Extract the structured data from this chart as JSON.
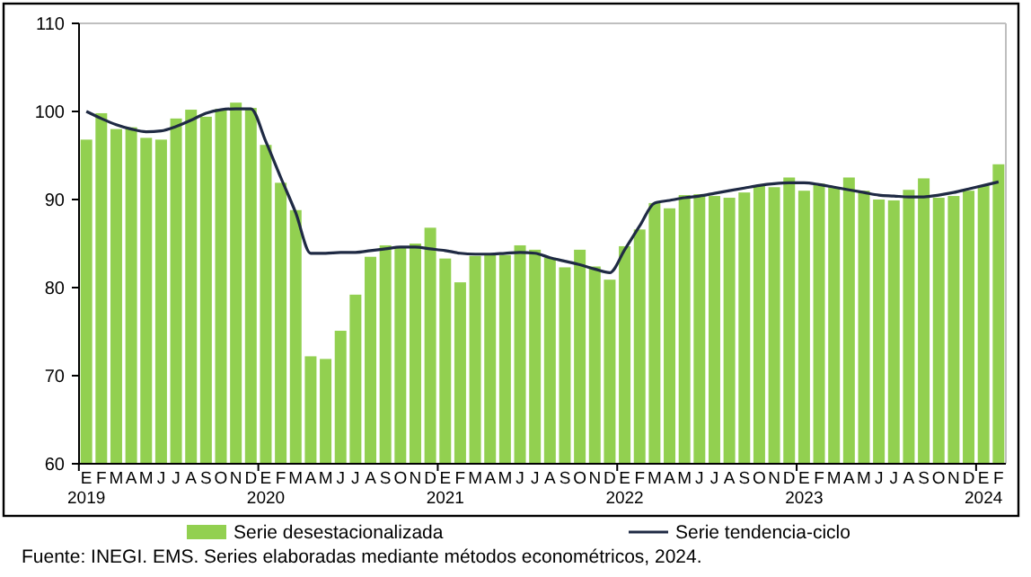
{
  "chart_data": {
    "type": "bar",
    "categories": [
      "E\n2019",
      "F",
      "M",
      "A",
      "M",
      "J",
      "J",
      "A",
      "S",
      "O",
      "N",
      "D",
      "E\n2020",
      "F",
      "M",
      "A",
      "M",
      "J",
      "J",
      "A",
      "S",
      "O",
      "N",
      "D",
      "E\n2021",
      "F",
      "M",
      "A",
      "M",
      "J",
      "J",
      "A",
      "S",
      "O",
      "N",
      "D",
      "E\n2022",
      "F",
      "M",
      "A",
      "M",
      "J",
      "J",
      "A",
      "S",
      "O",
      "N",
      "D",
      "E\n2023",
      "F",
      "M",
      "A",
      "M",
      "J",
      "J",
      "A",
      "S",
      "O",
      "N",
      "D",
      "E\n2024",
      "F"
    ],
    "series": [
      {
        "name": "Serie desestacionalizada",
        "color": "#92d050",
        "values": [
          96.8,
          99.8,
          98,
          98.2,
          97,
          96.8,
          99.2,
          100.2,
          99.4,
          100.3,
          101,
          100.4,
          96.2,
          91.9,
          88.8,
          72.2,
          71.9,
          75.1,
          79.2,
          83.5,
          84.8,
          84.6,
          85,
          86.8,
          83.3,
          80.6,
          83.6,
          83.8,
          83.7,
          84.8,
          84.3,
          83.4,
          82.3,
          84.3,
          82.4,
          80.9,
          84.7,
          86.6,
          89.6,
          89,
          90.5,
          90.6,
          90.4,
          90.2,
          90.8,
          91.6,
          91.4,
          92.5,
          91,
          91.8,
          91.4,
          92.5,
          91,
          90,
          89.9,
          91.1,
          92.4,
          90.2,
          90.4,
          91,
          91.6,
          94
        ]
      },
      {
        "name": "Serie tendencia-ciclo",
        "type": "line",
        "color": "#1f2a44",
        "values": [
          100,
          99.2,
          98.5,
          98,
          97.7,
          97.8,
          98.3,
          99,
          99.8,
          100.2,
          100.3,
          100.3,
          96.6,
          92.5,
          88.5,
          83.9,
          83.9,
          84,
          84,
          84.2,
          84.4,
          84.6,
          84.6,
          84.4,
          84.2,
          83.9,
          83.8,
          83.8,
          83.9,
          84,
          83.9,
          83.4,
          83,
          82.6,
          82.1,
          81.7,
          84.3,
          87,
          89.6,
          89.9,
          90.2,
          90.4,
          90.7,
          91,
          91.3,
          91.6,
          91.8,
          91.9,
          91.9,
          91.7,
          91.4,
          91.1,
          90.8,
          90.5,
          90.4,
          90.3,
          90.3,
          90.5,
          90.8,
          91.2,
          91.6,
          92
        ]
      }
    ],
    "ylim": [
      60,
      110
    ],
    "yticks": [
      60,
      70,
      80,
      90,
      100,
      110
    ],
    "grid": false,
    "legend": "bottom",
    "marker": "none",
    "annotations": [
      "Fuente: INEGI. EMS. Series elaboradas mediante métodos econométricos, 2024."
    ]
  }
}
